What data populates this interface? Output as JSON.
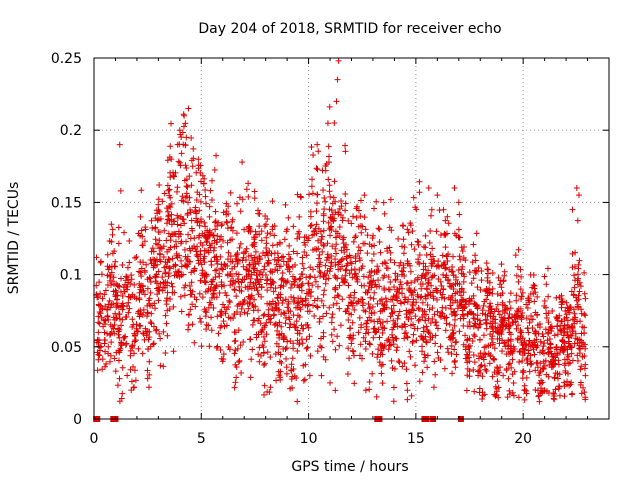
{
  "chart_data": {
    "type": "scatter",
    "title": "Day 204 of 2018, SRMTID for receiver echo",
    "xlabel": "GPS time / hours",
    "ylabel": "SRMTID / TECUs",
    "xlim": [
      0,
      24
    ],
    "ylim": [
      0,
      0.25
    ],
    "grid": true,
    "x_ticks": [
      0,
      5,
      10,
      15,
      20
    ],
    "y_ticks": [
      0,
      0.05,
      0.1,
      0.15,
      0.2,
      0.25
    ],
    "x_tick_labels": [
      "0",
      "5",
      "10",
      "15",
      "20"
    ],
    "y_tick_labels": [
      "0",
      "0.05",
      "0.1",
      "0.15",
      "0.2",
      "0.25"
    ],
    "marker": "+",
    "color": "#e00000",
    "series": [
      {
        "name": "SRMTID",
        "envelope": {
          "x": [
            0.1,
            0.5,
            1,
            1.5,
            2,
            2.5,
            3,
            3.5,
            4,
            4.5,
            5,
            5.5,
            6,
            6.5,
            7,
            7.5,
            8,
            8.5,
            9,
            9.5,
            10,
            10.5,
            11,
            11.5,
            12,
            12.5,
            13,
            13.5,
            14,
            14.5,
            15,
            15.5,
            16,
            16.5,
            17,
            17.5,
            18,
            18.5,
            19,
            19.5,
            20,
            20.5,
            21,
            21.5,
            22,
            22.5,
            22.9
          ],
          "median": [
            0.06,
            0.07,
            0.075,
            0.07,
            0.08,
            0.095,
            0.1,
            0.115,
            0.13,
            0.13,
            0.12,
            0.11,
            0.1,
            0.095,
            0.1,
            0.095,
            0.09,
            0.085,
            0.08,
            0.085,
            0.1,
            0.11,
            0.115,
            0.105,
            0.095,
            0.09,
            0.085,
            0.085,
            0.08,
            0.085,
            0.09,
            0.085,
            0.09,
            0.085,
            0.08,
            0.075,
            0.065,
            0.06,
            0.06,
            0.06,
            0.055,
            0.055,
            0.05,
            0.05,
            0.055,
            0.07,
            0.06
          ],
          "spread": [
            0.025,
            0.025,
            0.03,
            0.03,
            0.03,
            0.035,
            0.035,
            0.04,
            0.04,
            0.04,
            0.04,
            0.035,
            0.035,
            0.035,
            0.035,
            0.035,
            0.035,
            0.035,
            0.035,
            0.035,
            0.04,
            0.04,
            0.045,
            0.04,
            0.035,
            0.035,
            0.035,
            0.035,
            0.035,
            0.035,
            0.035,
            0.035,
            0.035,
            0.035,
            0.035,
            0.03,
            0.03,
            0.025,
            0.025,
            0.025,
            0.025,
            0.025,
            0.025,
            0.025,
            0.025,
            0.03,
            0.03
          ],
          "density_per_hour": 130
        },
        "outliers": [
          {
            "x": 1.2,
            "y": 0.19
          },
          {
            "x": 1.25,
            "y": 0.158
          },
          {
            "x": 3.6,
            "y": 0.18
          },
          {
            "x": 4.0,
            "y": 0.2
          },
          {
            "x": 4.2,
            "y": 0.21
          },
          {
            "x": 4.4,
            "y": 0.215
          },
          {
            "x": 4.3,
            "y": 0.195
          },
          {
            "x": 4.6,
            "y": 0.175
          },
          {
            "x": 3.9,
            "y": 0.19
          },
          {
            "x": 5.5,
            "y": 0.165
          },
          {
            "x": 10.4,
            "y": 0.19
          },
          {
            "x": 11.3,
            "y": 0.22
          },
          {
            "x": 11.35,
            "y": 0.235
          },
          {
            "x": 11.4,
            "y": 0.248
          },
          {
            "x": 11.2,
            "y": 0.205
          },
          {
            "x": 10.8,
            "y": 0.172
          },
          {
            "x": 12.6,
            "y": 0.155
          },
          {
            "x": 15.6,
            "y": 0.16
          },
          {
            "x": 16.0,
            "y": 0.155
          },
          {
            "x": 16.8,
            "y": 0.16
          },
          {
            "x": 17.0,
            "y": 0.15
          },
          {
            "x": 22.5,
            "y": 0.16
          },
          {
            "x": 22.3,
            "y": 0.145
          },
          {
            "x": 22.6,
            "y": 0.155
          },
          {
            "x": 2.5,
            "y": 0.028
          },
          {
            "x": 10.6,
            "y": 0.03
          },
          {
            "x": 11.0,
            "y": 0.025
          },
          {
            "x": 19.8,
            "y": 0.015
          },
          {
            "x": 21.2,
            "y": 0.018
          },
          {
            "x": 21.0,
            "y": 0.02
          },
          {
            "x": 22.9,
            "y": 0.03
          },
          {
            "x": 6.0,
            "y": 0.04
          }
        ],
        "zero_points": [
          0.1,
          0.15,
          0.9,
          1.0,
          13.2,
          13.3,
          15.4,
          15.5,
          15.8,
          17.1
        ]
      }
    ]
  }
}
